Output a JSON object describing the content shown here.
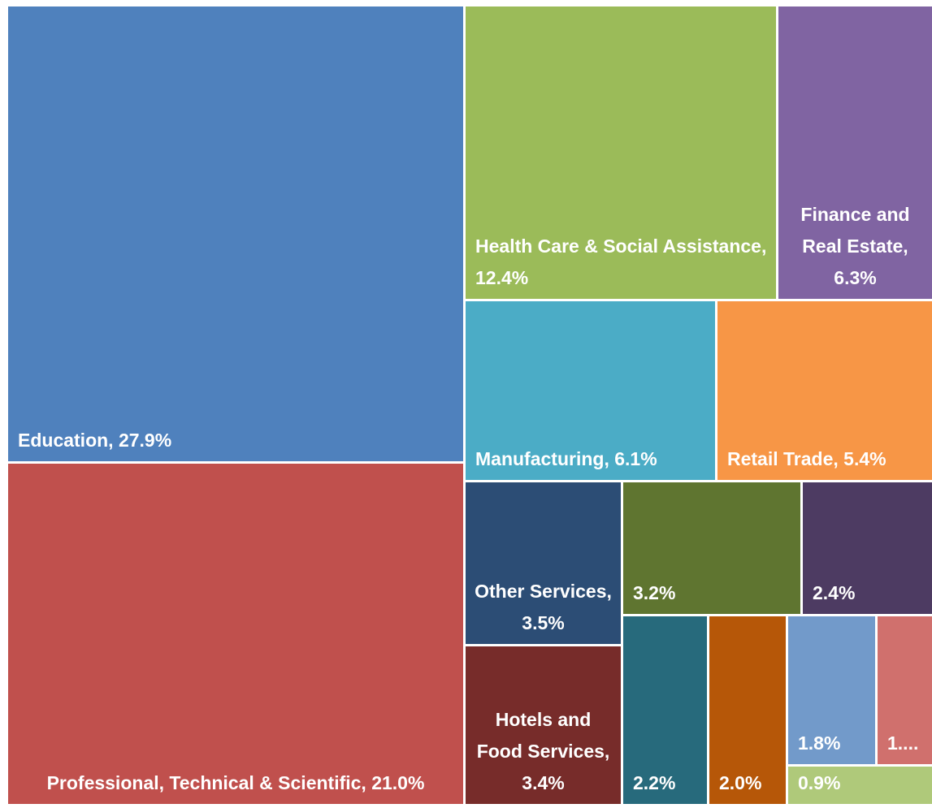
{
  "chart_data": {
    "type": "treemap",
    "values": [
      27.9,
      21.0,
      12.4,
      6.3,
      6.1,
      5.4,
      3.5,
      3.4,
      3.2,
      2.4,
      2.2,
      2.0,
      1.8,
      1.5,
      0.9
    ],
    "value_labels": [
      "Education, 27.9%",
      "Professional, Technical & Scientific, 21.0%",
      "Health Care & Social Assistance, 12.4%",
      "Finance and Real Estate, 6.3%",
      "Manufacturing, 6.1%",
      "Retail Trade, 5.4%",
      "Other Services, 3.5%",
      "Hotels and Food Services, 3.4%",
      "3.2%",
      "2.4%",
      "2.2%",
      "2.0%",
      "1.8%",
      "1....",
      "0.9%"
    ],
    "colors": [
      "#4f81bd",
      "#c0504d",
      "#9bbb59",
      "#8064a2",
      "#4bacc6",
      "#f79646",
      "#2c4d75",
      "#772c2a",
      "#5f7530",
      "#4d3b62",
      "#276a7c",
      "#b65708",
      "#729aca",
      "#d0706d",
      "#afc97a"
    ]
  }
}
